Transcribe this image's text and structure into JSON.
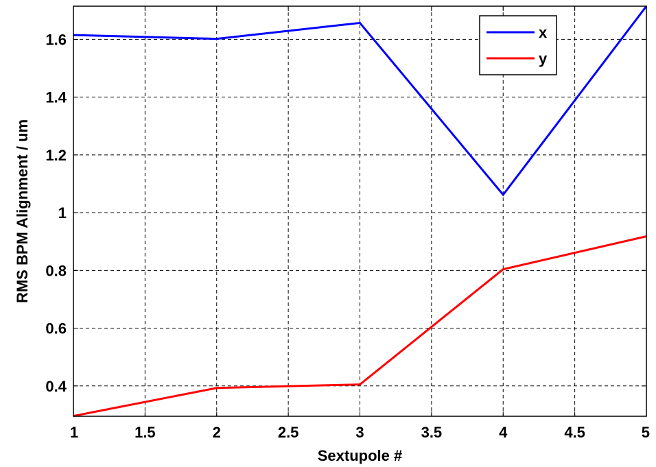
{
  "chart_data": {
    "type": "line",
    "xlabel": "Sextupole #",
    "ylabel": "RMS BPM Alignment / um",
    "xlim": [
      1,
      5
    ],
    "ylim": [
      0.295,
      1.715
    ],
    "xticks": [
      1,
      1.5,
      2,
      2.5,
      3,
      3.5,
      4,
      4.5,
      5
    ],
    "xtick_labels": [
      "1",
      "1.5",
      "2",
      "2.5",
      "3",
      "3.5",
      "4",
      "4.5",
      "5"
    ],
    "yticks": [
      0.4,
      0.6,
      0.8,
      1.0,
      1.2,
      1.4,
      1.6
    ],
    "ytick_labels": [
      "0.4",
      "0.6",
      "0.8",
      "1",
      "1.2",
      "1.4",
      "1.6"
    ],
    "grid": true,
    "legend_position": "top-right",
    "x": [
      1,
      2,
      3,
      4,
      5
    ],
    "series": [
      {
        "name": "x",
        "color": "#0000ff",
        "values": [
          1.615,
          1.602,
          1.657,
          1.062,
          1.715
        ]
      },
      {
        "name": "y",
        "color": "#ff0000",
        "values": [
          0.296,
          0.393,
          0.405,
          0.804,
          0.918
        ]
      }
    ]
  }
}
